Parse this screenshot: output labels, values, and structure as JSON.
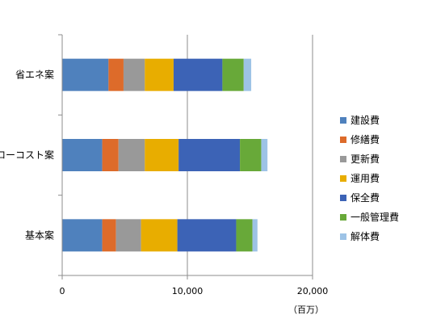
{
  "chart_data": {
    "type": "bar",
    "orientation": "horizontal",
    "stacked": true,
    "categories": [
      "省エネ案",
      "ローコスト案",
      "基本案"
    ],
    "series": [
      {
        "name": "建設費",
        "color": "#4f81bd",
        "values": [
          3700,
          3200,
          3200
        ]
      },
      {
        "name": "修繕費",
        "color": "#dd6b2a",
        "values": [
          1200,
          1300,
          1100
        ]
      },
      {
        "name": "更新費",
        "color": "#999999",
        "values": [
          1700,
          2100,
          2000
        ]
      },
      {
        "name": "運用費",
        "color": "#e8ad00",
        "values": [
          2300,
          2700,
          2900
        ]
      },
      {
        "name": "保全費",
        "color": "#3c63b6",
        "values": [
          3900,
          4900,
          4700
        ]
      },
      {
        "name": "一般管理費",
        "color": "#68a939",
        "values": [
          1700,
          1700,
          1300
        ]
      },
      {
        "name": "解体費",
        "color": "#9dc3e6",
        "values": [
          600,
          500,
          400
        ]
      }
    ],
    "xticks": [
      "0",
      "10,000",
      "20,000"
    ],
    "xlim": [
      0,
      20000
    ],
    "xunit": "（百万）",
    "grid": "vertical",
    "legend_position": "right"
  }
}
